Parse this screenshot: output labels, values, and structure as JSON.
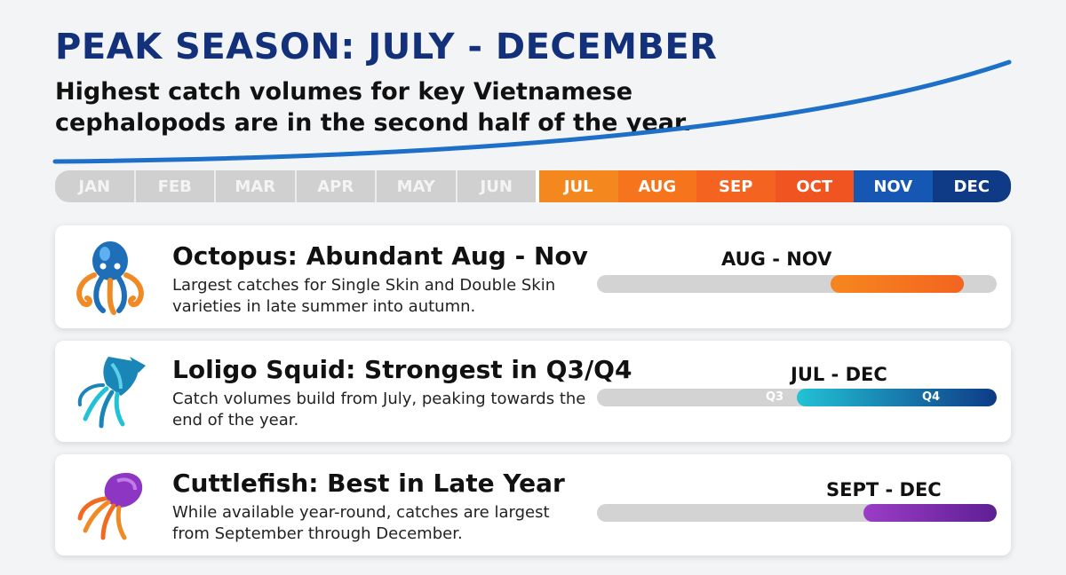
{
  "header": {
    "title": "PEAK SEASON: JULY - DECEMBER",
    "subtitle": "Highest catch volumes for key Vietnamese cephalopods are in the second half of the year."
  },
  "months": [
    {
      "label": "JAN",
      "active": false
    },
    {
      "label": "FEB",
      "active": false
    },
    {
      "label": "MAR",
      "active": false
    },
    {
      "label": "APR",
      "active": false
    },
    {
      "label": "MAY",
      "active": false
    },
    {
      "label": "JUN",
      "active": false
    },
    {
      "label": "JUL",
      "active": true,
      "color": "#f5871f"
    },
    {
      "label": "AUG",
      "active": true,
      "color": "#f5741c"
    },
    {
      "label": "SEP",
      "active": true,
      "color": "#f46420"
    },
    {
      "label": "OCT",
      "active": true,
      "color": "#f05420"
    },
    {
      "label": "NOV",
      "active": true,
      "color": "#1657b4"
    },
    {
      "label": "DEC",
      "active": true,
      "color": "#0e3a86"
    }
  ],
  "species": [
    {
      "icon": "octopus-icon",
      "title": "Octopus: Abundant Aug - Nov",
      "description": "Largest catches for Single Skin and Double Skin varieties in late summer into autumn.",
      "range_label": "AUG - NOV",
      "start_month": 8,
      "end_month": 11,
      "colors": [
        "#f5871f",
        "#f46420"
      ]
    },
    {
      "icon": "squid-icon",
      "title": "Loligo Squid: Strongest in Q3/Q4",
      "description": "Catch volumes build from July, peaking towards the end of the year.",
      "range_label": "JUL - DEC",
      "start_month": 7,
      "end_month": 12,
      "quarter_labels": [
        "Q3",
        "Q4"
      ],
      "colors": [
        "#22c2d6",
        "#0e3a86"
      ]
    },
    {
      "icon": "cuttlefish-icon",
      "title": "Cuttlefish: Best in Late Year",
      "description": "While available year-round, catches are largest from September through December.",
      "range_label": "SEPT - DEC",
      "start_month": 9,
      "end_month": 12,
      "colors": [
        "#9b3dc6",
        "#5e1f94"
      ]
    }
  ],
  "colors": {
    "title": "#13317a",
    "track": "#d3d3d3",
    "curve_start": "#1e88e5",
    "curve_end": "#0e3a86"
  }
}
